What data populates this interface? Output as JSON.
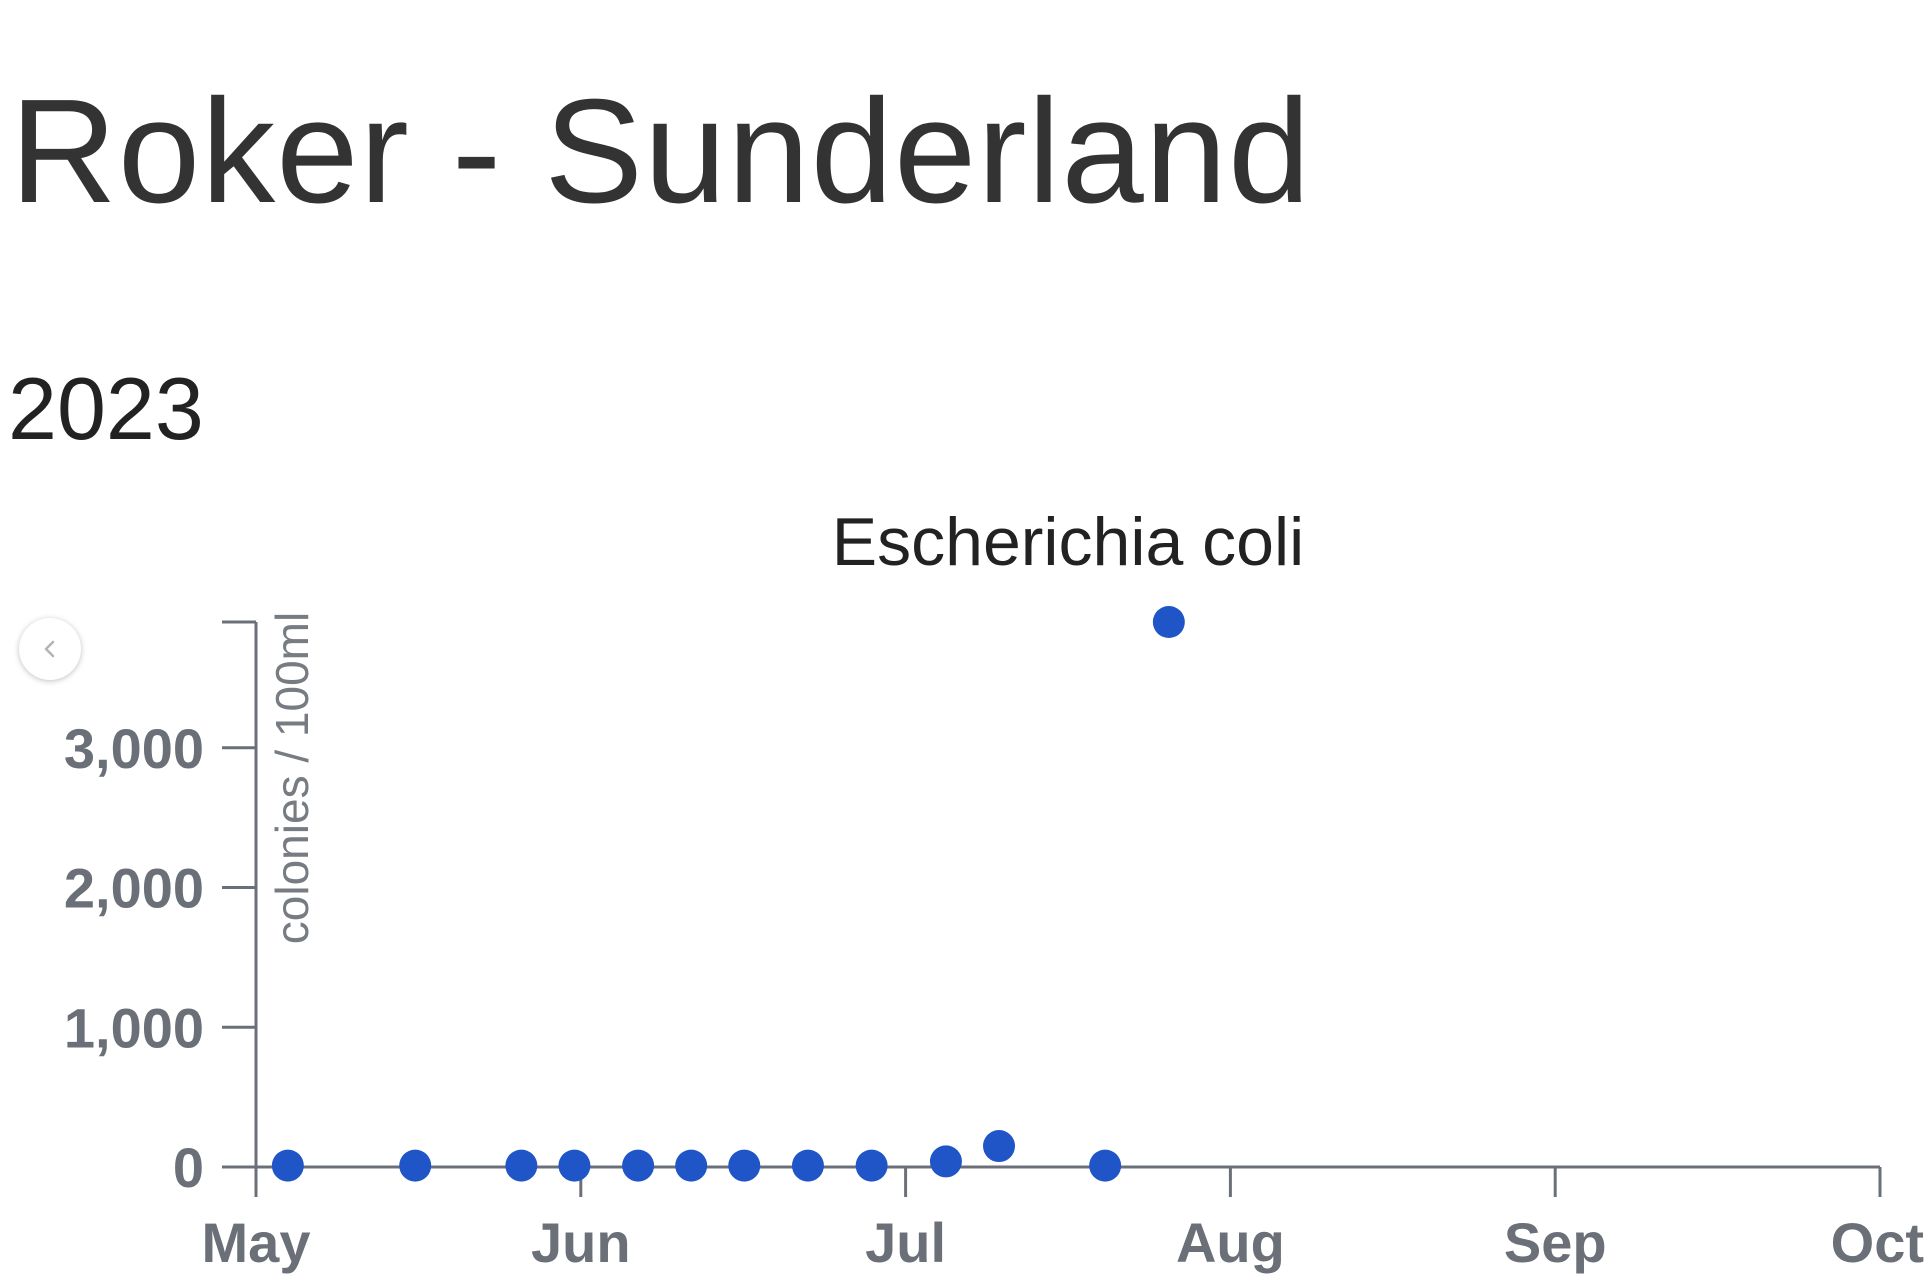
{
  "page": {
    "title": "Roker - Sunderland",
    "year": "2023"
  },
  "nav": {
    "prev_icon": "chevron-left-icon"
  },
  "chart_data": {
    "type": "scatter",
    "title": "Escherichia coli",
    "xlabel": "",
    "ylabel": "colonies / 100ml",
    "x_ticks": [
      "May",
      "Jun",
      "Jul",
      "Aug",
      "Sep",
      "Oct"
    ],
    "x_range": [
      "2023-05-01",
      "2023-10-01"
    ],
    "y_ticks": [
      "0",
      "1,000",
      "2,000",
      "3,000"
    ],
    "y_tick_values": [
      0,
      1000,
      2000,
      3000
    ],
    "ylim": [
      0,
      3900
    ],
    "grid": false,
    "marker_color": "#1f55c7",
    "points": [
      {
        "x": "2023-05-04",
        "y": 10
      },
      {
        "x": "2023-05-16",
        "y": 10
      },
      {
        "x": "2023-05-26",
        "y": 10
      },
      {
        "x": "2023-05-31",
        "y": 10
      },
      {
        "x": "2023-06-06",
        "y": 10
      },
      {
        "x": "2023-06-11",
        "y": 10
      },
      {
        "x": "2023-06-16",
        "y": 10
      },
      {
        "x": "2023-06-22",
        "y": 10
      },
      {
        "x": "2023-06-28",
        "y": 10
      },
      {
        "x": "2023-07-05",
        "y": 40
      },
      {
        "x": "2023-07-10",
        "y": 150
      },
      {
        "x": "2023-07-20",
        "y": 10
      },
      {
        "x": "2023-07-26",
        "y": 3900
      }
    ]
  }
}
